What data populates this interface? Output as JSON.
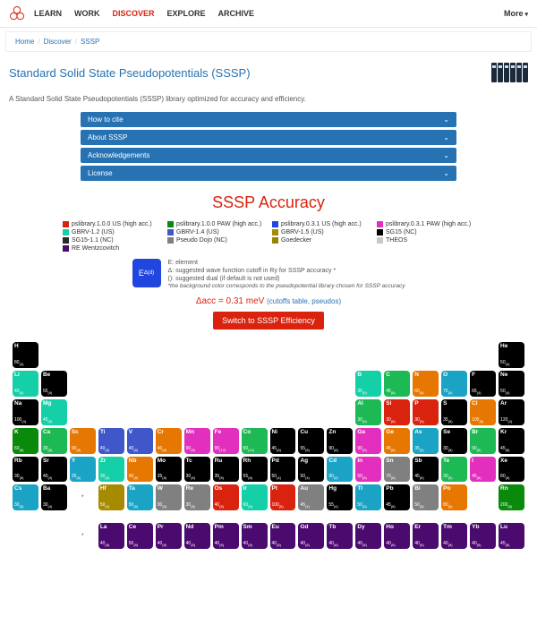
{
  "nav": {
    "items": [
      "LEARN",
      "WORK",
      "DISCOVER",
      "EXPLORE",
      "ARCHIVE"
    ],
    "active_index": 2,
    "more": "More"
  },
  "breadcrumb": [
    "Home",
    "Discover",
    "SSSP"
  ],
  "page_title": "Standard Solid State Pseudopotentials (SSSP)",
  "subtitle": "A Standard Solid State Pseudopotentials (SSSP) library optimized for accuracy and efficiency.",
  "accordions": [
    "How to cite",
    "About SSSP",
    "Acknowledgements",
    "License"
  ],
  "section_title": "SSSP Accuracy",
  "legend": [
    {
      "color": "#d9230f",
      "label": "pslibrary.1.0.0 US (high acc.)"
    },
    {
      "color": "#0a8a0a",
      "label": "pslibrary.1.0.0 PAW (high acc.)"
    },
    {
      "color": "#2146e0",
      "label": "pslibrary.0.3.1 US (high acc.)"
    },
    {
      "color": "#e22fbd",
      "label": "pslibrary.0.3.1 PAW (high acc.)"
    },
    {
      "color": "#14cfa7",
      "label": "GBRV-1.2 (US)"
    },
    {
      "color": "#3f57c9",
      "label": "GBRV-1.4 (US)"
    },
    {
      "color": "#a68b00",
      "label": "GBRV-1.5 (US)"
    },
    {
      "color": "#000000",
      "label": "SG15 (NC)"
    },
    {
      "color": "#2a2a2a",
      "label": "SG15-1.1 (NC)"
    },
    {
      "color": "#808080",
      "label": "Pseudo Dojo (NC)"
    },
    {
      "color": "#9a8200",
      "label": "Goedecker"
    },
    {
      "color": "#c9c9c9",
      "label": "THEOS"
    },
    {
      "color": "#4a0a6e",
      "label": "RE Wentzcovitch"
    }
  ],
  "key": {
    "box": "EΔ(d)",
    "e": "E: element",
    "d": "Δ: suggested wave function cutoff in Ry for SSSP accuracy *",
    "p": "(): suggested dual (if default is not used)",
    "note": "*the background color corresponds to the pseudopotential library chosen for SSSP accuracy"
  },
  "delta": {
    "text": "Δacc = 0.31 meV",
    "links": "(cutoffs table, pseudos)"
  },
  "switch_label": "Switch to SSSP Efficiency",
  "colors": {
    "black": "#000000",
    "dark": "#2a2a2a",
    "blue": "#2146e0",
    "royal": "#3f57c9",
    "red": "#d9230f",
    "green": "#0a8a0a",
    "teal": "#14cfa7",
    "magenta": "#e22fbd",
    "olive": "#a68b00",
    "gold": "#9a8200",
    "gray": "#808080",
    "purple": "#4a0a6e",
    "orange": "#e67700",
    "brightgreen": "#1db954",
    "cyan": "#1aa3c4"
  },
  "table": [
    [
      {
        "s": "H",
        "c": "black",
        "v": "80(4)"
      },
      null,
      null,
      null,
      null,
      null,
      null,
      null,
      null,
      null,
      null,
      null,
      null,
      null,
      null,
      null,
      null,
      {
        "s": "He",
        "c": "black",
        "v": "50(4)"
      }
    ],
    [
      {
        "s": "Li",
        "c": "teal",
        "v": "40(8)"
      },
      {
        "s": "Be",
        "c": "black",
        "v": "55(4)"
      },
      null,
      null,
      null,
      null,
      null,
      null,
      null,
      null,
      null,
      null,
      {
        "s": "B",
        "c": "teal",
        "v": "35(8)"
      },
      {
        "s": "C",
        "c": "brightgreen",
        "v": "45(8)"
      },
      {
        "s": "N",
        "c": "orange",
        "v": "60(8)"
      },
      {
        "s": "O",
        "c": "cyan",
        "v": "75(8)"
      },
      {
        "s": "F",
        "c": "black",
        "v": "65(4)"
      },
      {
        "s": "Ne",
        "c": "black",
        "v": "50(4)"
      }
    ],
    [
      {
        "s": "Na",
        "c": "black",
        "v": "100(4)"
      },
      {
        "s": "Mg",
        "c": "teal",
        "v": "45(8)"
      },
      null,
      null,
      null,
      null,
      null,
      null,
      null,
      null,
      null,
      null,
      {
        "s": "Al",
        "c": "brightgreen",
        "v": "30(8)"
      },
      {
        "s": "Si",
        "c": "red",
        "v": "30(8)"
      },
      {
        "s": "P",
        "c": "red",
        "v": "30(8)"
      },
      {
        "s": "S",
        "c": "black",
        "v": "35(8)"
      },
      {
        "s": "Cl",
        "c": "orange",
        "v": "100(8)"
      },
      {
        "s": "Ar",
        "c": "black",
        "v": "120(4)"
      }
    ],
    [
      {
        "s": "K",
        "c": "green",
        "v": "60(8)"
      },
      {
        "s": "Ca",
        "c": "brightgreen",
        "v": "30(8)"
      },
      {
        "s": "Sc",
        "c": "orange",
        "v": "90(8)"
      },
      {
        "s": "Ti",
        "c": "royal",
        "v": "40(8)"
      },
      {
        "s": "V",
        "c": "royal",
        "v": "40(8)"
      },
      {
        "s": "Cr",
        "c": "orange",
        "v": "40(8)"
      },
      {
        "s": "Mn",
        "c": "magenta",
        "v": "90(8)"
      },
      {
        "s": "Fe",
        "c": "magenta",
        "v": "90(12)"
      },
      {
        "s": "Co",
        "c": "brightgreen",
        "v": "90(12)"
      },
      {
        "s": "Ni",
        "c": "black",
        "v": "45(8)"
      },
      {
        "s": "Cu",
        "c": "black",
        "v": "55(8)"
      },
      {
        "s": "Zn",
        "c": "black",
        "v": "90(8)"
      },
      {
        "s": "Ga",
        "c": "magenta",
        "v": "90(8)"
      },
      {
        "s": "Ge",
        "c": "orange",
        "v": "45(8)"
      },
      {
        "s": "As",
        "c": "cyan",
        "v": "35(8)"
      },
      {
        "s": "Se",
        "c": "black",
        "v": "30(8)"
      },
      {
        "s": "Br",
        "c": "brightgreen",
        "v": "90(8)"
      },
      {
        "s": "Kr",
        "c": "black",
        "v": "45(8)"
      }
    ],
    [
      {
        "s": "Rb",
        "c": "black",
        "v": "30(8)"
      },
      {
        "s": "Sr",
        "c": "black",
        "v": "40(4)"
      },
      {
        "s": "Y",
        "c": "cyan",
        "v": "35(8)"
      },
      {
        "s": "Zr",
        "c": "teal",
        "v": "30(8)"
      },
      {
        "s": "Nb",
        "c": "orange",
        "v": "40(8)"
      },
      {
        "s": "Mo",
        "c": "black",
        "v": "35(8)"
      },
      {
        "s": "Tc",
        "c": "black",
        "v": "30(8)"
      },
      {
        "s": "Ru",
        "c": "black",
        "v": "35(8)"
      },
      {
        "s": "Rh",
        "c": "black",
        "v": "55(8)"
      },
      {
        "s": "Pd",
        "c": "black",
        "v": "50(4)"
      },
      {
        "s": "Ag",
        "c": "black",
        "v": "50(4)"
      },
      {
        "s": "Cd",
        "c": "cyan",
        "v": "90(8)"
      },
      {
        "s": "In",
        "c": "magenta",
        "v": "50(8)"
      },
      {
        "s": "Sn",
        "c": "gray",
        "v": "70(8)"
      },
      {
        "s": "Sb",
        "c": "black",
        "v": "45(8)"
      },
      {
        "s": "Te",
        "c": "brightgreen",
        "v": "30(8)"
      },
      {
        "s": "I",
        "c": "magenta",
        "v": "45(8)"
      },
      {
        "s": "Xe",
        "c": "black",
        "v": "80(8)"
      }
    ],
    [
      {
        "s": "Cs",
        "c": "cyan",
        "v": "30(8)"
      },
      {
        "s": "Ba",
        "c": "black",
        "v": "30(4)"
      },
      {
        "star": true
      },
      {
        "s": "Hf",
        "c": "olive",
        "v": "50(4)"
      },
      {
        "s": "Ta",
        "c": "cyan",
        "v": "50(8)"
      },
      {
        "s": "W",
        "c": "gray",
        "v": "30(8)"
      },
      {
        "s": "Re",
        "c": "gray",
        "v": "30(8)"
      },
      {
        "s": "Os",
        "c": "red",
        "v": "40(8)"
      },
      {
        "s": "Ir",
        "c": "teal",
        "v": "60(8)"
      },
      {
        "s": "Pt",
        "c": "red",
        "v": "100(8)"
      },
      {
        "s": "Au",
        "c": "gray",
        "v": "45(4)"
      },
      {
        "s": "Hg",
        "c": "black",
        "v": "55(4)"
      },
      {
        "s": "Tl",
        "c": "cyan",
        "v": "50(8)"
      },
      {
        "s": "Pb",
        "c": "black",
        "v": "45(8)"
      },
      {
        "s": "Bi",
        "c": "gray",
        "v": "50(8)"
      },
      {
        "s": "Po",
        "c": "orange",
        "v": "80(8)"
      },
      null,
      {
        "s": "Rn",
        "c": "green",
        "v": "200(8)"
      }
    ]
  ],
  "lanthanides": [
    {
      "s": "La",
      "c": "purple",
      "v": "40(8)"
    },
    {
      "s": "Ce",
      "c": "purple",
      "v": "50(8)"
    },
    {
      "s": "Pr",
      "c": "purple",
      "v": "40(8)"
    },
    {
      "s": "Nd",
      "c": "purple",
      "v": "40(8)"
    },
    {
      "s": "Pm",
      "c": "purple",
      "v": "40(8)"
    },
    {
      "s": "Sm",
      "c": "purple",
      "v": "40(8)"
    },
    {
      "s": "Eu",
      "c": "purple",
      "v": "40(8)"
    },
    {
      "s": "Gd",
      "c": "purple",
      "v": "40(8)"
    },
    {
      "s": "Tb",
      "c": "purple",
      "v": "40(8)"
    },
    {
      "s": "Dy",
      "c": "purple",
      "v": "40(8)"
    },
    {
      "s": "Ho",
      "c": "purple",
      "v": "40(8)"
    },
    {
      "s": "Er",
      "c": "purple",
      "v": "40(8)"
    },
    {
      "s": "Tm",
      "c": "purple",
      "v": "40(8)"
    },
    {
      "s": "Yb",
      "c": "purple",
      "v": "40(8)"
    },
    {
      "s": "Lu",
      "c": "purple",
      "v": "45(8)"
    }
  ]
}
